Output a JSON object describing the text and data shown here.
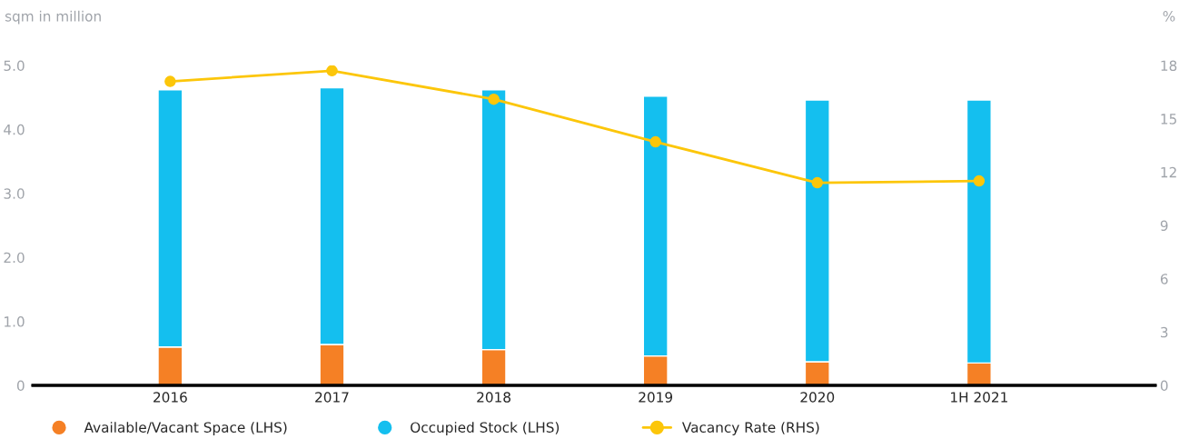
{
  "chart_data": {
    "type": "bar",
    "stacked": true,
    "categories": [
      "2016",
      "2017",
      "2018",
      "2019",
      "2020",
      "1H 2021"
    ],
    "series": [
      {
        "name": "Available/Vacant Space (LHS)",
        "color": "#f58025",
        "values": [
          0.6,
          0.64,
          0.56,
          0.46,
          0.37,
          0.35
        ]
      },
      {
        "name": "Occupied Stock (LHS)",
        "color": "#14bfef",
        "values": [
          4.02,
          4.01,
          4.06,
          4.06,
          4.09,
          4.11
        ]
      },
      {
        "name": "Vacancy Rate (RHS)",
        "type": "line",
        "axis": "y2",
        "color": "#fcc60a",
        "marker": "circle",
        "values": [
          17.1,
          17.7,
          16.1,
          13.7,
          11.4,
          11.5
        ]
      }
    ],
    "ylabel": "sqm in million",
    "y2label": "%",
    "ylim": [
      0,
      5
    ],
    "yticks": [
      {
        "value": 0,
        "label": "0"
      },
      {
        "value": 1,
        "label": "1.0"
      },
      {
        "value": 2,
        "label": "2.0"
      },
      {
        "value": 3,
        "label": "3.0"
      },
      {
        "value": 4,
        "label": "4.0"
      },
      {
        "value": 5,
        "label": "5.0"
      }
    ],
    "y2lim": [
      0,
      18
    ],
    "y2ticks": [
      0,
      3,
      6,
      9,
      12,
      15,
      18
    ],
    "grid": false,
    "legend": "bottom"
  }
}
